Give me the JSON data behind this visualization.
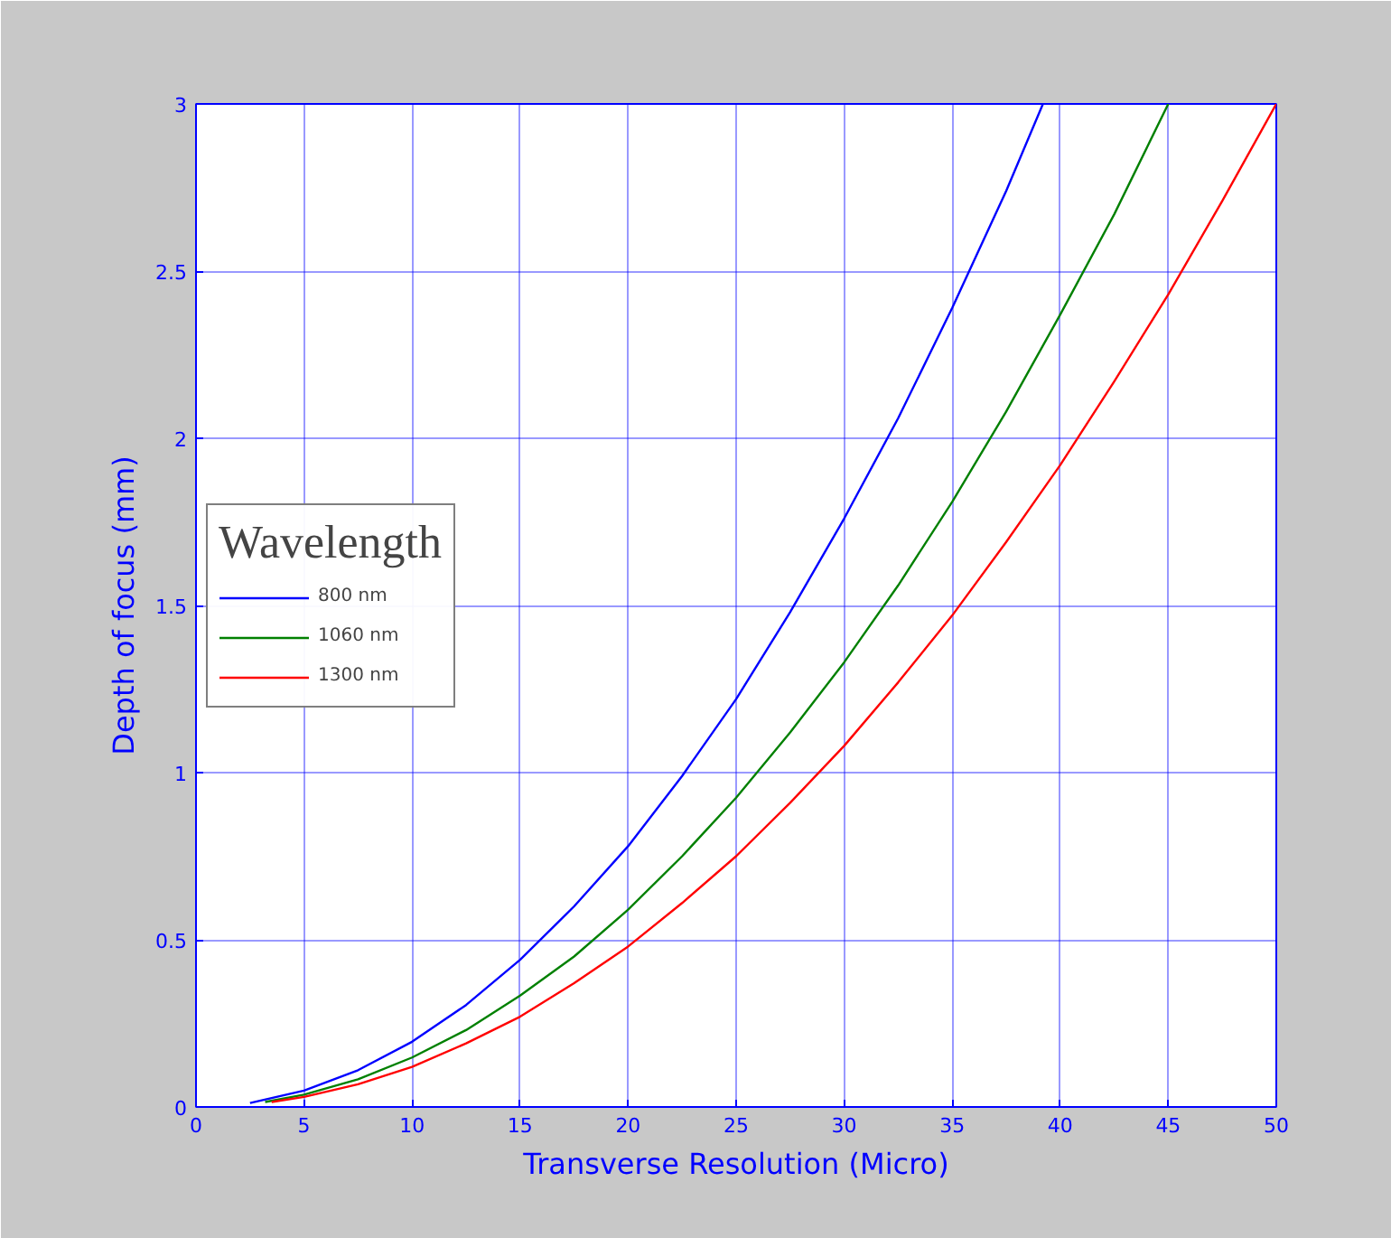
{
  "chart_data": {
    "type": "line",
    "xlabel": "Transverse Resolution (Micro)",
    "ylabel": "Depth of focus (mm)",
    "legend_title": "Wavelength",
    "legend": "left",
    "grid": true,
    "line_style": "solid",
    "xlim": [
      0,
      50
    ],
    "ylim": [
      0,
      3
    ],
    "xticks": [
      0,
      5,
      10,
      15,
      20,
      25,
      30,
      35,
      40,
      45,
      50
    ],
    "yticks": [
      0,
      0.5,
      1,
      1.5,
      2,
      2.5,
      3
    ],
    "series": [
      {
        "name": "800 nm",
        "color": "#0000ff",
        "x": [
          2.5,
          5,
          7.5,
          10,
          12.5,
          15,
          17.5,
          20,
          22.5,
          25,
          27.5,
          30,
          32.5,
          35,
          37.5,
          39.2
        ],
        "values": [
          0.012,
          0.049,
          0.11,
          0.195,
          0.305,
          0.44,
          0.6,
          0.78,
          0.99,
          1.22,
          1.48,
          1.76,
          2.06,
          2.39,
          2.74,
          3
        ]
      },
      {
        "name": "1060 nm",
        "color": "#008000",
        "x": [
          3.2,
          5,
          7.5,
          10,
          12.5,
          15,
          17.5,
          20,
          22.5,
          25,
          27.5,
          30,
          32.5,
          35,
          37.5,
          40,
          42.5,
          45
        ],
        "values": [
          0.015,
          0.037,
          0.083,
          0.148,
          0.23,
          0.333,
          0.45,
          0.59,
          0.75,
          0.925,
          1.12,
          1.33,
          1.56,
          1.81,
          2.08,
          2.37,
          2.67,
          3
        ]
      },
      {
        "name": "1300 nm",
        "color": "#ff0000",
        "x": [
          3.5,
          5,
          7.5,
          10,
          12.5,
          15,
          17.5,
          20,
          22.5,
          25,
          27.5,
          30,
          32.5,
          35,
          37.5,
          40,
          42.5,
          45,
          47.5,
          50
        ],
        "values": [
          0.015,
          0.03,
          0.068,
          0.12,
          0.19,
          0.27,
          0.37,
          0.48,
          0.61,
          0.75,
          0.91,
          1.08,
          1.27,
          1.47,
          1.69,
          1.92,
          2.17,
          2.43,
          2.71,
          3
        ]
      }
    ]
  }
}
